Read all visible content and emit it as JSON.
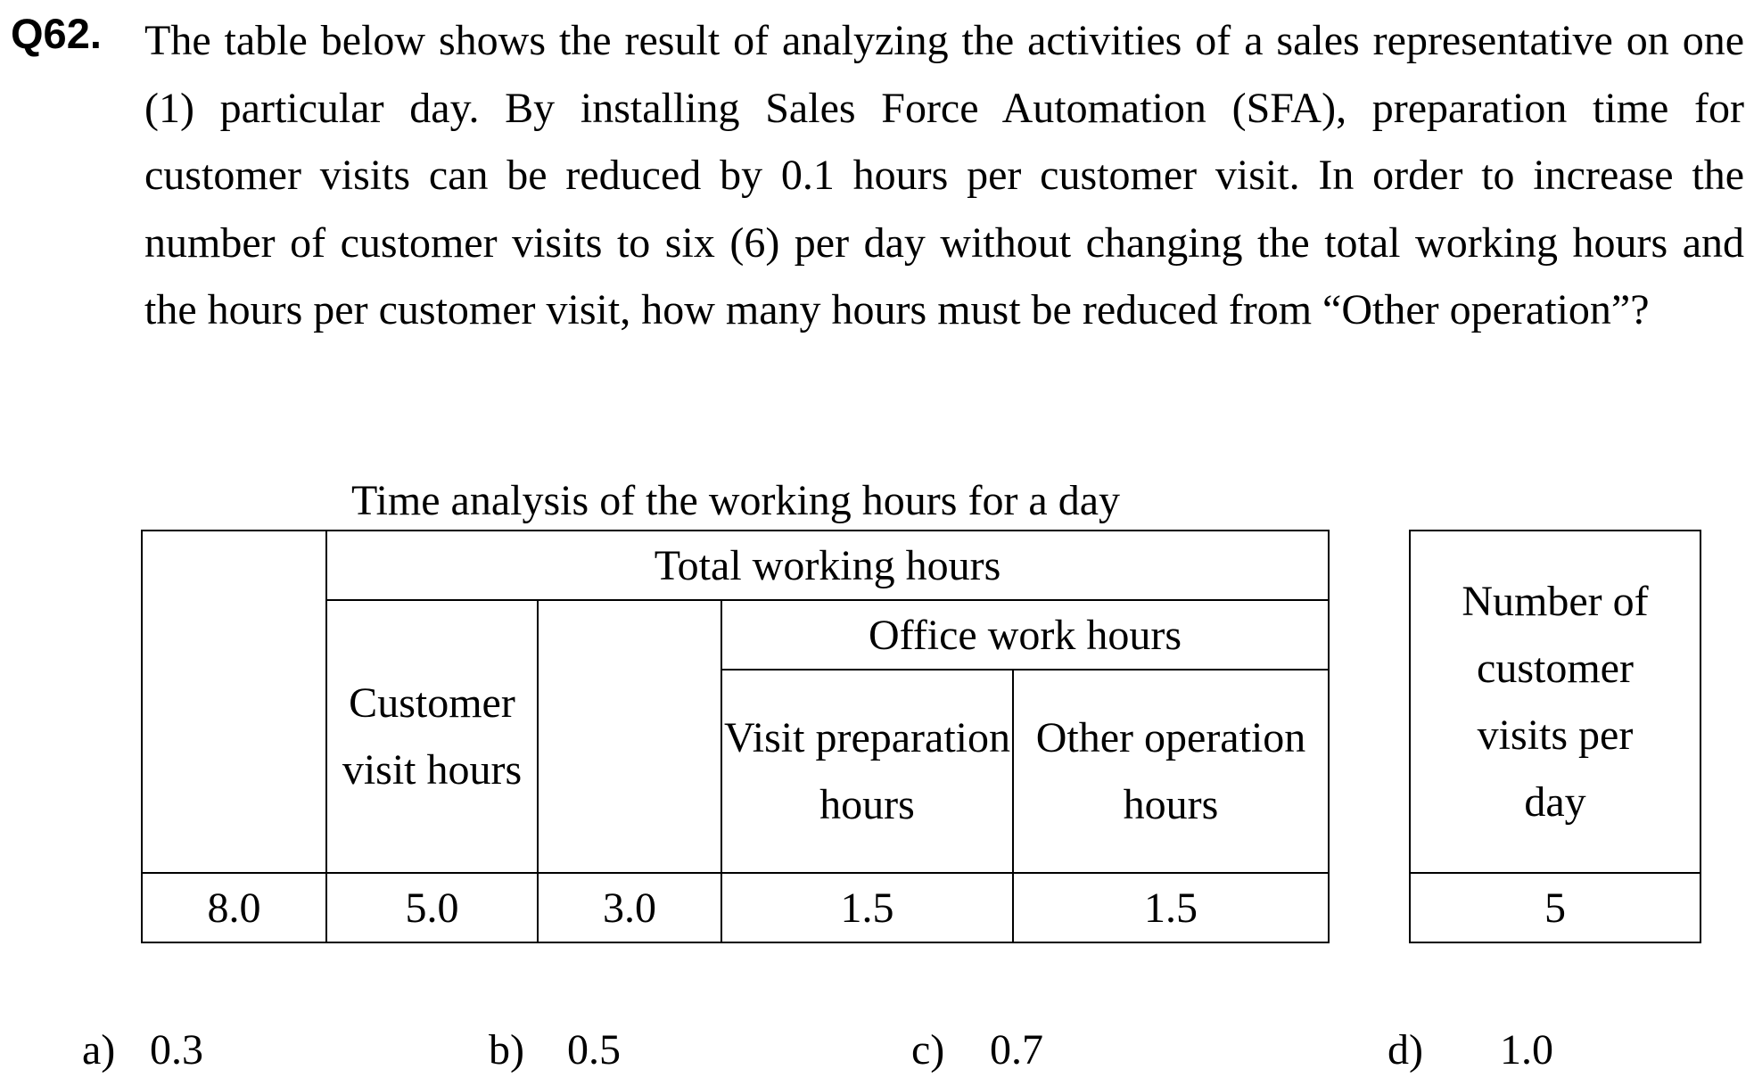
{
  "question": {
    "number": "Q62.",
    "text": "The table below shows the result of analyzing the activities of a sales representative on one (1) particular day. By installing Sales Force Automation (SFA), preparation time for customer visits can be reduced by 0.1 hours per customer visit. In order to increase the number of customer visits to six (6) per day without changing the total working hours and the hours per customer visit, how many hours must be reduced from “Other operation”?"
  },
  "table": {
    "caption": "Time analysis of the working hours for a day",
    "total_header": "Total working hours",
    "customer_visit_header": "Customer visit hours",
    "office_header": "Office work hours",
    "visit_prep_header": "Visit preparation hours",
    "other_operation_header": "Other operation hours",
    "values": {
      "total": "8.0",
      "customer_visit": "5.0",
      "office": "3.0",
      "visit_prep": "1.5",
      "other_operation": "1.5"
    },
    "visits_header": "Number of customer visits per day",
    "visits_value": "5"
  },
  "answers": [
    {
      "label": "a)",
      "value": "0.3"
    },
    {
      "label": "b)",
      "value": "0.5"
    },
    {
      "label": "c)",
      "value": "0.7"
    },
    {
      "label": "d)",
      "value": "1.0"
    }
  ]
}
